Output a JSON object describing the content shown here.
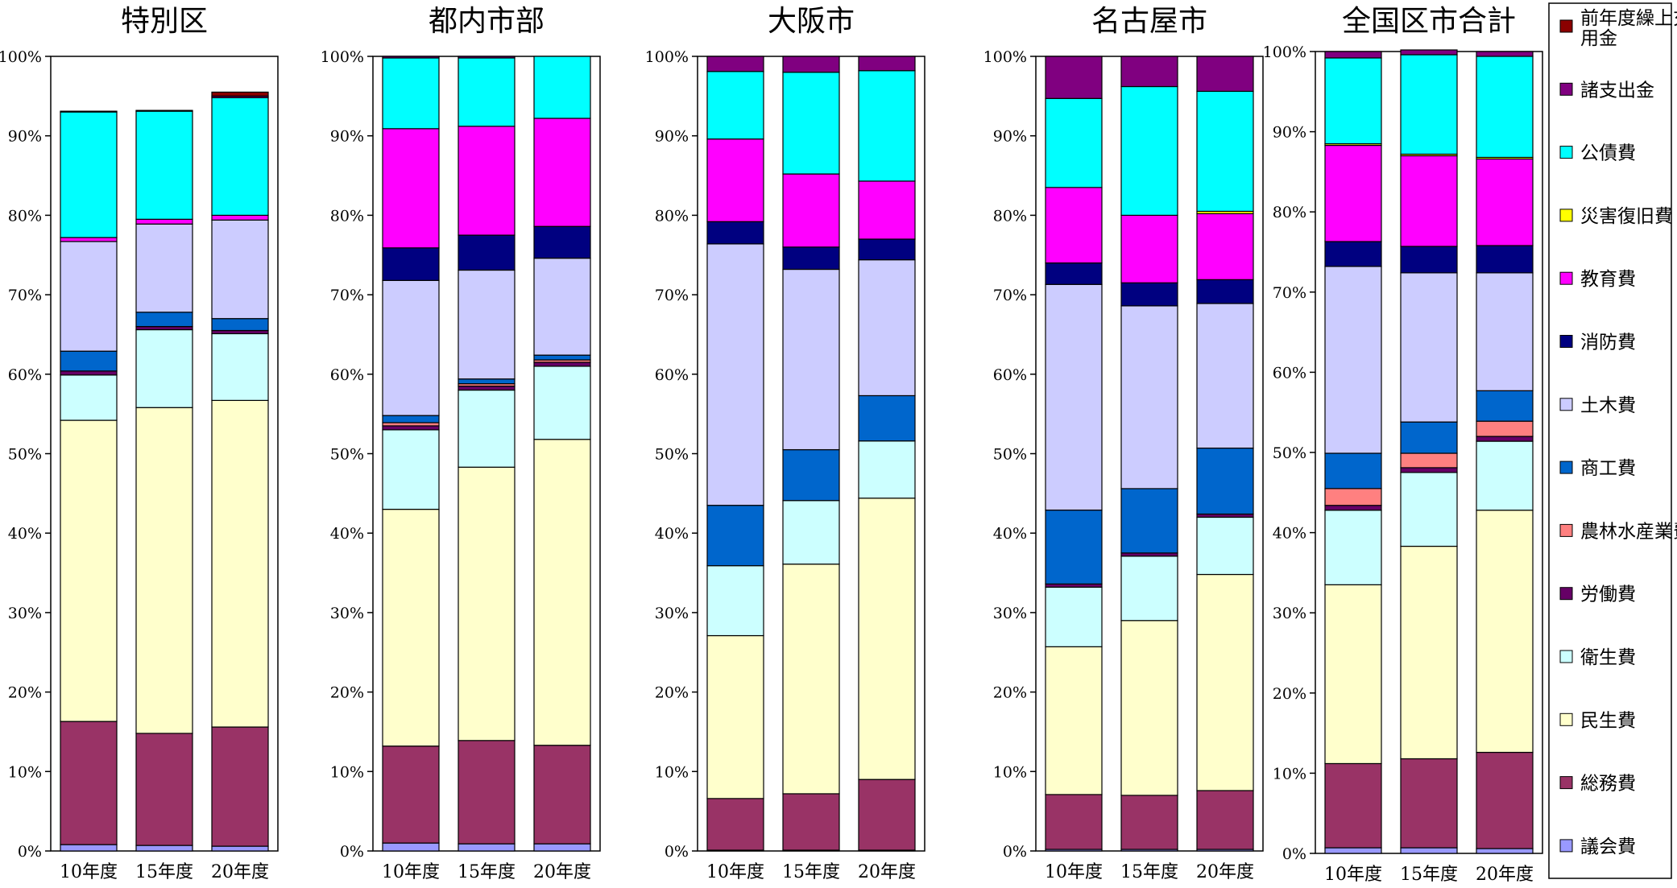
{
  "chart_data": {
    "type": "bar",
    "stacked": true,
    "normalized": true,
    "legend_position": "right",
    "grid": false,
    "ylim": [
      0,
      100
    ],
    "y_ticks": [
      "0%",
      "10%",
      "20%",
      "30%",
      "40%",
      "50%",
      "60%",
      "70%",
      "80%",
      "90%",
      "100%"
    ],
    "categories": [
      "10年度",
      "15年度",
      "20年度"
    ],
    "legend": [
      {
        "key": "zenendo",
        "label": "前年度繰上充用金",
        "color": "#8B0000"
      },
      {
        "key": "shoshishutsu",
        "label": "諸支出金",
        "color": "#800080"
      },
      {
        "key": "kosaihi",
        "label": "公債費",
        "color": "#00FFFF"
      },
      {
        "key": "saigai",
        "label": "災害復旧費",
        "color": "#FFFF00"
      },
      {
        "key": "kyoiku",
        "label": "教育費",
        "color": "#FF00FF"
      },
      {
        "key": "shobo",
        "label": "消防費",
        "color": "#000080"
      },
      {
        "key": "doboku",
        "label": "土木費",
        "color": "#CCCCFF"
      },
      {
        "key": "shoko",
        "label": "商工費",
        "color": "#0066CC"
      },
      {
        "key": "norin",
        "label": "農林水産業費",
        "color": "#FF8080"
      },
      {
        "key": "rodo",
        "label": "労働費",
        "color": "#660066"
      },
      {
        "key": "eisei",
        "label": "衛生費",
        "color": "#CCFFFF"
      },
      {
        "key": "minsei",
        "label": "民生費",
        "color": "#FFFFCC"
      },
      {
        "key": "somu",
        "label": "総務費",
        "color": "#993366"
      },
      {
        "key": "gikai",
        "label": "議会費",
        "color": "#9999FF"
      }
    ],
    "stack_order": [
      "gikai",
      "somu",
      "minsei",
      "eisei",
      "rodo",
      "norin",
      "shoko",
      "doboku",
      "shobo",
      "kyoiku",
      "saigai",
      "kosaihi",
      "shoshishutsu",
      "zenendo"
    ],
    "panels": [
      {
        "title": "特別区",
        "bars": [
          {
            "gikai": 0.8,
            "somu": 15.5,
            "minsei": 37.9,
            "eisei": 5.7,
            "rodo": 0.5,
            "norin": 0.0,
            "shoko": 2.5,
            "doboku": 13.8,
            "shobo": 0.0,
            "kyoiku": 0.5,
            "saigai": 0.0,
            "kosaihi": 15.8,
            "shoshishutsu": 0.1,
            "zenendo": 0.0
          },
          {
            "gikai": 0.7,
            "somu": 14.1,
            "minsei": 41.0,
            "eisei": 9.8,
            "rodo": 0.4,
            "norin": 0.0,
            "shoko": 1.8,
            "doboku": 11.1,
            "shobo": 0.0,
            "kyoiku": 0.6,
            "saigai": 0.0,
            "kosaihi": 13.6,
            "shoshishutsu": 0.1,
            "zenendo": 0.0
          },
          {
            "gikai": 0.6,
            "somu": 15.0,
            "minsei": 41.1,
            "eisei": 8.4,
            "rodo": 0.4,
            "norin": 0.0,
            "shoko": 1.5,
            "doboku": 12.4,
            "shobo": 0.0,
            "kyoiku": 0.6,
            "saigai": 0.0,
            "kosaihi": 14.8,
            "shoshishutsu": 0.2,
            "zenendo": 0.5
          }
        ]
      },
      {
        "title": "都内市部",
        "bars": [
          {
            "gikai": 1.0,
            "somu": 12.2,
            "minsei": 29.8,
            "eisei": 10.0,
            "rodo": 0.5,
            "norin": 0.4,
            "shoko": 0.9,
            "doboku": 17.0,
            "shobo": 4.1,
            "kyoiku": 15.0,
            "saigai": 0.0,
            "kosaihi": 8.9,
            "shoshishutsu": 0.2,
            "zenendo": 0.0
          },
          {
            "gikai": 0.9,
            "somu": 13.0,
            "minsei": 34.4,
            "eisei": 9.7,
            "rodo": 0.5,
            "norin": 0.3,
            "shoko": 0.6,
            "doboku": 13.7,
            "shobo": 4.4,
            "kyoiku": 13.7,
            "saigai": 0.0,
            "kosaihi": 8.6,
            "shoshishutsu": 0.2,
            "zenendo": 0.0
          },
          {
            "gikai": 0.9,
            "somu": 12.4,
            "minsei": 38.5,
            "eisei": 9.2,
            "rodo": 0.5,
            "norin": 0.3,
            "shoko": 0.6,
            "doboku": 12.2,
            "shobo": 4.0,
            "kyoiku": 13.6,
            "saigai": 0.0,
            "kosaihi": 7.8,
            "shoshishutsu": 0.0,
            "zenendo": 0.0
          }
        ]
      },
      {
        "title": "大阪市",
        "bars": [
          {
            "gikai": 0.1,
            "somu": 6.5,
            "minsei": 20.5,
            "eisei": 8.8,
            "rodo": 0.0,
            "norin": 0.0,
            "shoko": 7.6,
            "doboku": 32.9,
            "shobo": 2.8,
            "kyoiku": 10.4,
            "saigai": 0.0,
            "kosaihi": 8.5,
            "shoshishutsu": 1.9,
            "zenendo": 0.0
          },
          {
            "gikai": 0.1,
            "somu": 7.1,
            "minsei": 28.9,
            "eisei": 8.0,
            "rodo": 0.0,
            "norin": 0.0,
            "shoko": 6.4,
            "doboku": 22.7,
            "shobo": 2.8,
            "kyoiku": 9.2,
            "saigai": 0.0,
            "kosaihi": 12.8,
            "shoshishutsu": 2.0,
            "zenendo": 0.0
          },
          {
            "gikai": 0.1,
            "somu": 8.9,
            "minsei": 35.4,
            "eisei": 7.2,
            "rodo": 0.0,
            "norin": 0.0,
            "shoko": 5.7,
            "doboku": 17.1,
            "shobo": 2.6,
            "kyoiku": 7.3,
            "saigai": 0.0,
            "kosaihi": 13.9,
            "shoshishutsu": 1.8,
            "zenendo": 0.0
          }
        ]
      },
      {
        "title": "名古屋市",
        "bars": [
          {
            "gikai": 0.2,
            "somu": 6.9,
            "minsei": 18.6,
            "eisei": 7.5,
            "rodo": 0.4,
            "norin": 0.0,
            "shoko": 9.3,
            "doboku": 28.4,
            "shobo": 2.7,
            "kyoiku": 9.5,
            "saigai": 0.0,
            "kosaihi": 11.2,
            "shoshishutsu": 5.3,
            "zenendo": 0.0
          },
          {
            "gikai": 0.2,
            "somu": 6.8,
            "minsei": 22.0,
            "eisei": 8.1,
            "rodo": 0.4,
            "norin": 0.0,
            "shoko": 8.1,
            "doboku": 23.0,
            "shobo": 2.9,
            "kyoiku": 8.5,
            "saigai": 0.0,
            "kosaihi": 16.2,
            "shoshishutsu": 3.8,
            "zenendo": 0.0
          },
          {
            "gikai": 0.2,
            "somu": 7.4,
            "minsei": 27.2,
            "eisei": 7.2,
            "rodo": 0.4,
            "norin": 0.0,
            "shoko": 8.3,
            "doboku": 18.2,
            "shobo": 3.0,
            "kyoiku": 8.3,
            "saigai": 0.3,
            "kosaihi": 15.1,
            "shoshishutsu": 4.4,
            "zenendo": 0.0
          }
        ]
      },
      {
        "title": "全国区市合計",
        "bars": [
          {
            "gikai": 0.7,
            "somu": 10.5,
            "minsei": 22.3,
            "eisei": 9.3,
            "rodo": 0.6,
            "norin": 2.1,
            "shoko": 4.4,
            "doboku": 23.3,
            "shobo": 3.1,
            "kyoiku": 12.0,
            "saigai": 0.2,
            "kosaihi": 10.7,
            "shoshishutsu": 0.8,
            "zenendo": 0.0
          },
          {
            "gikai": 0.7,
            "somu": 11.1,
            "minsei": 26.5,
            "eisei": 9.2,
            "rodo": 0.6,
            "norin": 1.8,
            "shoko": 3.9,
            "doboku": 18.6,
            "shobo": 3.3,
            "kyoiku": 11.3,
            "saigai": 0.2,
            "kosaihi": 12.4,
            "shoshishutsu": 0.6,
            "zenendo": 0.0
          },
          {
            "gikai": 0.6,
            "somu": 12.0,
            "minsei": 30.2,
            "eisei": 8.6,
            "rodo": 0.6,
            "norin": 1.9,
            "shoko": 3.8,
            "doboku": 14.7,
            "shobo": 3.4,
            "kyoiku": 10.8,
            "saigai": 0.2,
            "kosaihi": 12.6,
            "shoshishutsu": 0.6,
            "zenendo": 0.0
          }
        ]
      }
    ]
  }
}
